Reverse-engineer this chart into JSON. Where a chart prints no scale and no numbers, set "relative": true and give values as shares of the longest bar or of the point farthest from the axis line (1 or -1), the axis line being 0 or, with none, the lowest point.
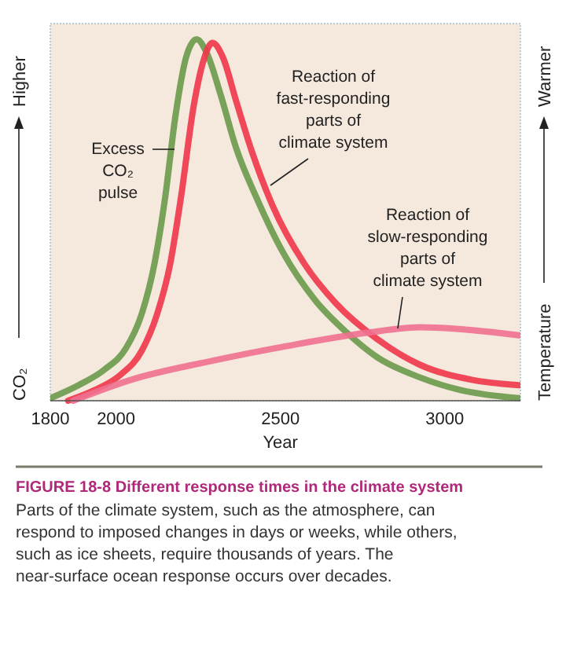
{
  "chart_data": {
    "type": "line",
    "relative": true,
    "title": "FIGURE 18-8 Different response times in the climate system",
    "xlabel": "Year",
    "ylabel": "CO₂",
    "y2label": "Temperature",
    "x": [
      1800,
      1886,
      1966,
      2030,
      2078,
      2117,
      2149,
      2181,
      2213,
      2245,
      2277,
      2317,
      2365,
      2428,
      2508,
      2604,
      2700,
      2795,
      2923,
      3050,
      3226
    ],
    "xlim": [
      1800,
      3230
    ],
    "xticks": [
      1800,
      2000,
      2500,
      3000
    ],
    "grid": false,
    "series": [
      {
        "name": "Excess CO₂ pulse",
        "color": "#6a9a4a",
        "values": [
          0.007,
          0.043,
          0.087,
          0.145,
          0.24,
          0.38,
          0.56,
          0.79,
          0.95,
          1.0,
          0.96,
          0.85,
          0.7,
          0.56,
          0.41,
          0.28,
          0.19,
          0.12,
          0.065,
          0.029,
          0.007
        ]
      },
      {
        "name": "Reaction of fast-responding parts of climate system",
        "color": "#f0364a",
        "x": [
          1854,
          1934,
          2014,
          2078,
          2125,
          2165,
          2197,
          2237,
          2269,
          2293,
          2325,
          2365,
          2413,
          2476,
          2572,
          2668,
          2795,
          2923,
          3082,
          3226
        ],
        "values": [
          0,
          0.029,
          0.072,
          0.138,
          0.24,
          0.38,
          0.56,
          0.82,
          0.95,
          0.99,
          0.95,
          0.83,
          0.69,
          0.54,
          0.38,
          0.27,
          0.17,
          0.1,
          0.058,
          0.043
        ]
      },
      {
        "name": "Reaction of slow-responding parts of climate system",
        "color": "#f07090",
        "x": [
          1870,
          2046,
          2285,
          2524,
          2763,
          2923,
          3034,
          3226
        ],
        "values": [
          0,
          0.058,
          0.109,
          0.152,
          0.188,
          0.203,
          0.199,
          0.181
        ]
      }
    ],
    "annotations": [
      "Higher",
      "Warmer",
      "Parts of the climate system, such as the atmosphere, can respond to imposed changes in days or weeks, while others, such as ice sheets, require thousands of years. The near-surface ocean response occurs over decades."
    ]
  }
}
